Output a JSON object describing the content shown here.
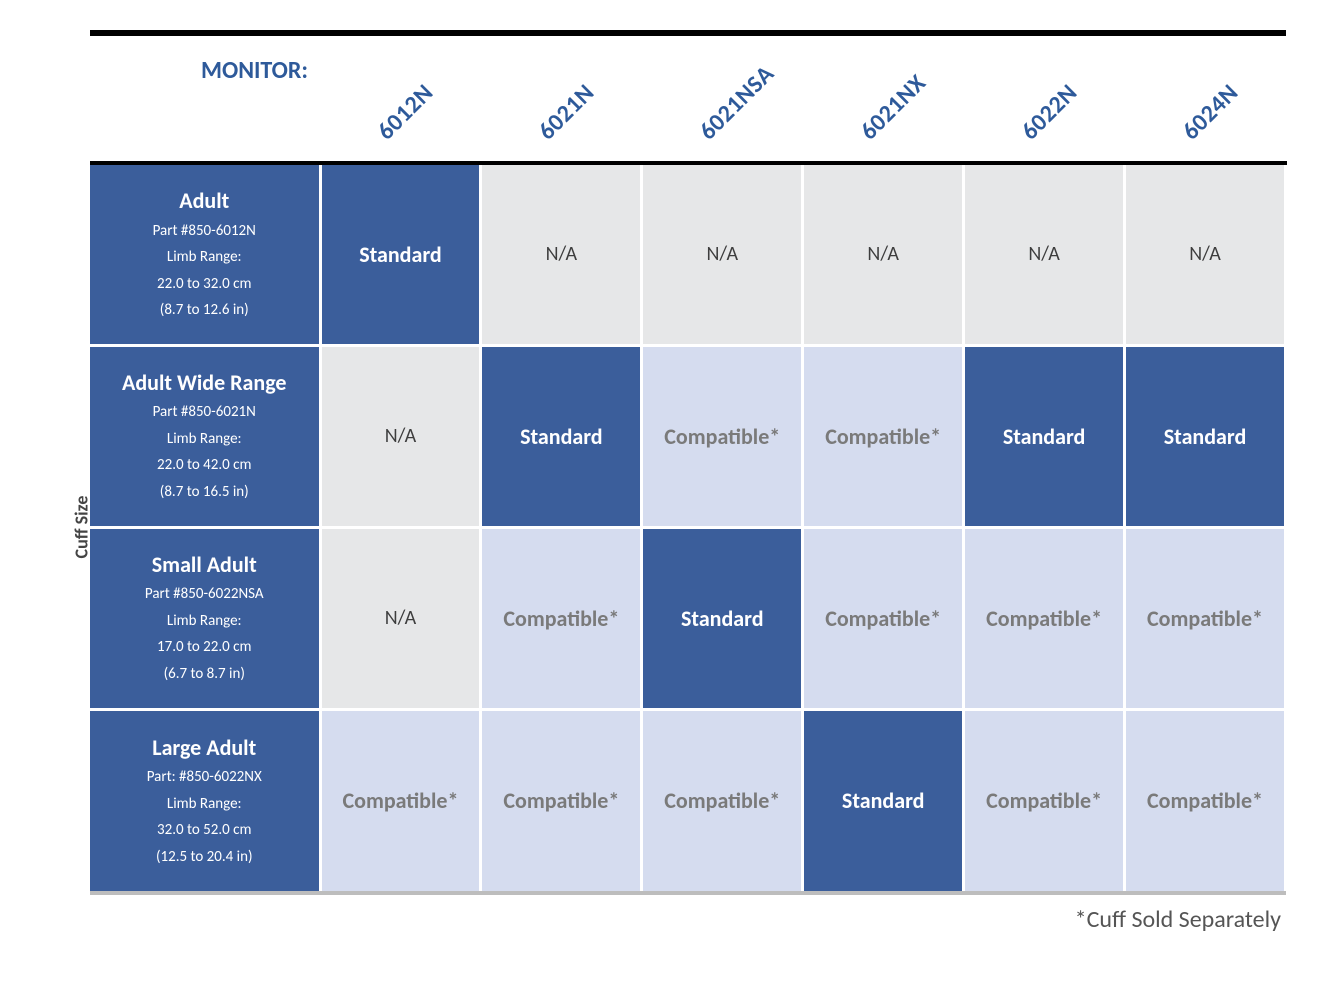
{
  "sideLabel": "Cuff Size",
  "header": {
    "label": "MONITOR:",
    "columns": [
      "6012N",
      "6021N",
      "6021NSA",
      "6021NX",
      "6022N",
      "6024N"
    ]
  },
  "cellLabels": {
    "standard": "Standard",
    "na": "N/A",
    "compatible": "Compatible*"
  },
  "rows": [
    {
      "name": "Adult",
      "part": "Part #850-6012N",
      "range1": "Limb Range:",
      "range2": "22.0 to 32.0 cm",
      "range3": "(8.7 to 12.6 in)",
      "cells": [
        "standard",
        "na",
        "na",
        "na",
        "na",
        "na"
      ]
    },
    {
      "name": "Adult Wide Range",
      "part": "Part #850-6021N",
      "range1": "Limb Range:",
      "range2": "22.0 to 42.0 cm",
      "range3": "(8.7 to 16.5 in)",
      "cells": [
        "na",
        "standard",
        "compatible",
        "compatible",
        "standard",
        "standard"
      ]
    },
    {
      "name": "Small Adult",
      "part": "Part #850-6022NSA",
      "range1": "Limb Range:",
      "range2": "17.0 to 22.0 cm",
      "range3": "(6.7 to 8.7 in)",
      "cells": [
        "na",
        "compatible",
        "standard",
        "compatible",
        "compatible",
        "compatible"
      ]
    },
    {
      "name": "Large Adult",
      "part": "Part: #850-6022NX",
      "range1": "Limb Range:",
      "range2": "32.0 to 52.0 cm",
      "range3": "(12.5 to 20.4 in)",
      "cells": [
        "compatible",
        "compatible",
        "compatible",
        "standard",
        "compatible",
        "compatible"
      ]
    }
  ],
  "footnote": "*Cuff Sold Separately",
  "colors": {
    "brandBlue": "#3b5e9b",
    "headerText": "#2e5a9a",
    "naBg": "#e6e7e8",
    "compatibleBg": "#d5dcef",
    "compatibleText": "#7a7a7a",
    "bottomShadow": "#bdbdbd"
  },
  "layout": {
    "rowHeaderWidthPx": 230,
    "dataRowHeightPx": 182,
    "headerRowHeightPx": 130,
    "cellGapPx": 3,
    "topRulePx": 6,
    "midRulePx": 4
  }
}
